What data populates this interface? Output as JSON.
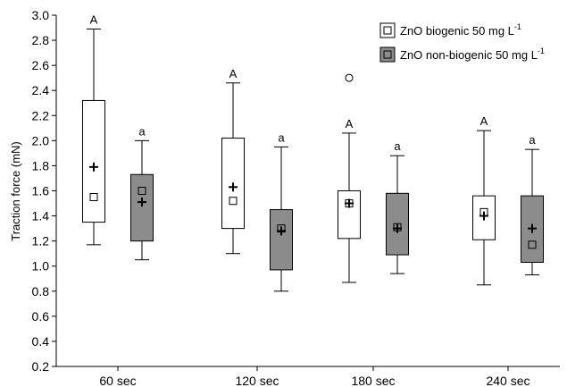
{
  "chart_data": {
    "type": "box",
    "ylabel": "Traction force (mN)",
    "ylim": [
      0.2,
      3.0
    ],
    "yticks": [
      0.2,
      0.4,
      0.6,
      0.8,
      1.0,
      1.2,
      1.4,
      1.6,
      1.8,
      2.0,
      2.2,
      2.4,
      2.6,
      2.8,
      3.0
    ],
    "ytick_labels": [
      "0.2",
      "0.4",
      "0.6",
      "0.8",
      "1.0",
      "1.2",
      "1.4",
      "1.6",
      "1.8",
      "2.0",
      "2.2",
      "2.4",
      "2.6",
      "2.8",
      "3.0"
    ],
    "categories": [
      "60 sec",
      "120 sec",
      "180 sec",
      "240 sec"
    ],
    "legend_position": "top-right",
    "series": [
      {
        "name": "ZnO biogenic 50 mg L",
        "name_superscript": "-1",
        "fill": "#ffffff",
        "boxes": [
          {
            "min": 1.17,
            "q1": 1.35,
            "median": 1.55,
            "mean": 1.79,
            "q3": 2.32,
            "max": 2.89,
            "outliers": [],
            "label": "A"
          },
          {
            "min": 1.1,
            "q1": 1.3,
            "median": 1.52,
            "mean": 1.63,
            "q3": 2.02,
            "max": 2.46,
            "outliers": [],
            "label": "A"
          },
          {
            "min": 0.87,
            "q1": 1.22,
            "median": 1.5,
            "mean": 1.5,
            "q3": 1.6,
            "max": 2.06,
            "outliers": [
              2.5
            ],
            "label": "A"
          },
          {
            "min": 0.85,
            "q1": 1.21,
            "median": 1.43,
            "mean": 1.4,
            "q3": 1.56,
            "max": 2.08,
            "outliers": [],
            "label": "A"
          }
        ]
      },
      {
        "name": "ZnO non-biogenic  50 mg L",
        "name_superscript": "-1",
        "fill": "#8c8c8c",
        "boxes": [
          {
            "min": 1.05,
            "q1": 1.2,
            "median": 1.6,
            "mean": 1.51,
            "q3": 1.73,
            "max": 2.0,
            "outliers": [],
            "label": "a"
          },
          {
            "min": 0.8,
            "q1": 0.97,
            "median": 1.3,
            "mean": 1.28,
            "q3": 1.45,
            "max": 1.95,
            "outliers": [],
            "label": "a"
          },
          {
            "min": 0.94,
            "q1": 1.09,
            "median": 1.31,
            "mean": 1.3,
            "q3": 1.58,
            "max": 1.88,
            "outliers": [],
            "label": "a"
          },
          {
            "min": 0.93,
            "q1": 1.03,
            "median": 1.17,
            "mean": 1.3,
            "q3": 1.56,
            "max": 1.93,
            "outliers": [],
            "label": "a"
          }
        ]
      }
    ]
  }
}
